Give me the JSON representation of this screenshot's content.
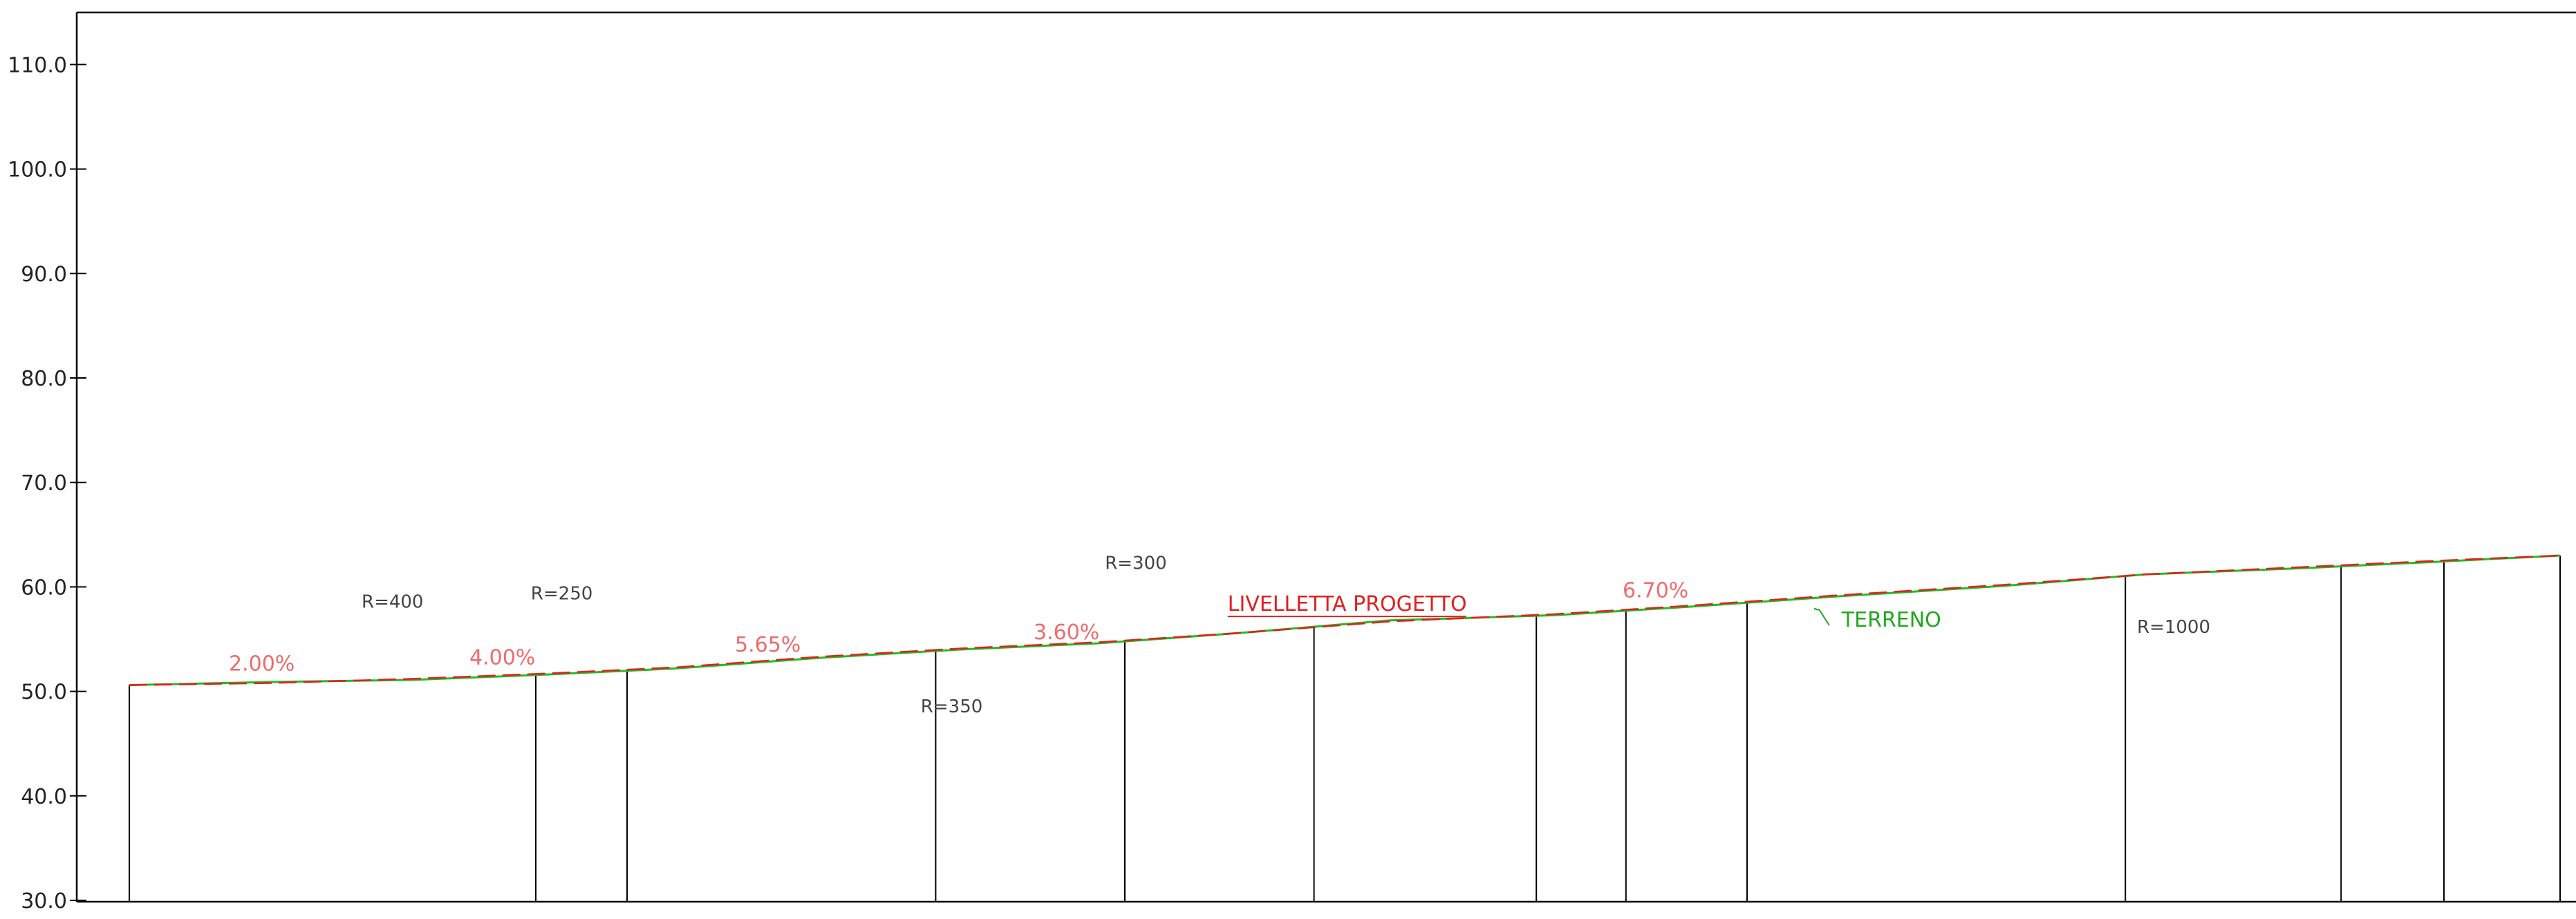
{
  "colors": {
    "frame": "#000000",
    "station_lines": "#000000",
    "design_line": "#e02020",
    "ground_line": "#22bb22",
    "slope_text": "#f26a6a",
    "radius_text": "#444444",
    "design_text": "#e02020",
    "ground_text": "#1fa81f"
  },
  "icons": [
    "leader-line-arrow"
  ],
  "chart_data": {
    "type": "line",
    "y_axis": {
      "ylim": [
        30,
        115
      ],
      "ticks": [
        "110.0",
        "100.0",
        "90.0",
        "80.0",
        "70.0",
        "60.0",
        "50.0",
        "40.0",
        "30.0"
      ]
    },
    "grid": false,
    "legend": "none",
    "series": [
      {
        "name": "LIVELLETTA PROGETTO",
        "profile": [
          [
            0,
            50.6
          ],
          [
            8.5,
            50.8
          ],
          [
            17,
            51.2
          ],
          [
            25,
            51.7
          ],
          [
            33,
            52.3
          ],
          [
            41.5,
            53.3
          ],
          [
            50,
            54.1
          ],
          [
            58.4,
            54.7
          ],
          [
            67,
            55.6
          ],
          [
            76,
            56.7
          ],
          [
            86,
            57.4
          ],
          [
            94,
            58.2
          ],
          [
            103,
            59.2
          ],
          [
            113,
            60.2
          ],
          [
            121.5,
            61.2
          ],
          [
            131,
            61.9
          ],
          [
            139,
            62.5
          ],
          [
            146.5,
            63.0
          ]
        ]
      },
      {
        "name": "TERRENO",
        "profile": [
          [
            0,
            50.6
          ],
          [
            8.5,
            50.9
          ],
          [
            17,
            51.1
          ],
          [
            25,
            51.6
          ],
          [
            33,
            52.2
          ],
          [
            41.5,
            53.2
          ],
          [
            50,
            54.0
          ],
          [
            58.4,
            54.6
          ],
          [
            67,
            55.6
          ],
          [
            76,
            56.8
          ],
          [
            86,
            57.3
          ],
          [
            94,
            58.1
          ],
          [
            103,
            59.1
          ],
          [
            113,
            60.1
          ],
          [
            121.5,
            61.2
          ],
          [
            131,
            61.8
          ],
          [
            139,
            62.4
          ],
          [
            146.5,
            63.0
          ]
        ]
      }
    ],
    "stations": [
      0,
      24.5,
      30,
      48.6,
      60,
      71.4,
      84.8,
      90.2,
      97.5,
      120.3,
      133.3,
      139.5
    ],
    "slope_labels": [
      {
        "text": "2.00%",
        "x": 6,
        "y": 52.0
      },
      {
        "text": "4.00%",
        "x": 20.5,
        "y": 52.6
      },
      {
        "text": "5.65%",
        "x": 36.5,
        "y": 53.8
      },
      {
        "text": "3.60%",
        "x": 54.5,
        "y": 55.0
      },
      {
        "text": "6.70%",
        "x": 90,
        "y": 59.0
      }
    ],
    "radius_labels": [
      {
        "text": "R=400",
        "x": 14,
        "y": 58.0
      },
      {
        "text": "R=250",
        "x": 24.2,
        "y": 58.8
      },
      {
        "text": "R=350",
        "x": 47.7,
        "y": 48.0
      },
      {
        "text": "R=300",
        "x": 58.8,
        "y": 61.7
      },
      {
        "text": "R=1000",
        "x": 121,
        "y": 55.6
      }
    ],
    "annotations": [
      {
        "text": "LIVELLETTA PROGETTO",
        "x": 66.2,
        "y": 57.7,
        "series": "design"
      },
      {
        "text": "TERRENO",
        "x": 103.2,
        "y": 56.2,
        "series": "ground"
      }
    ]
  }
}
